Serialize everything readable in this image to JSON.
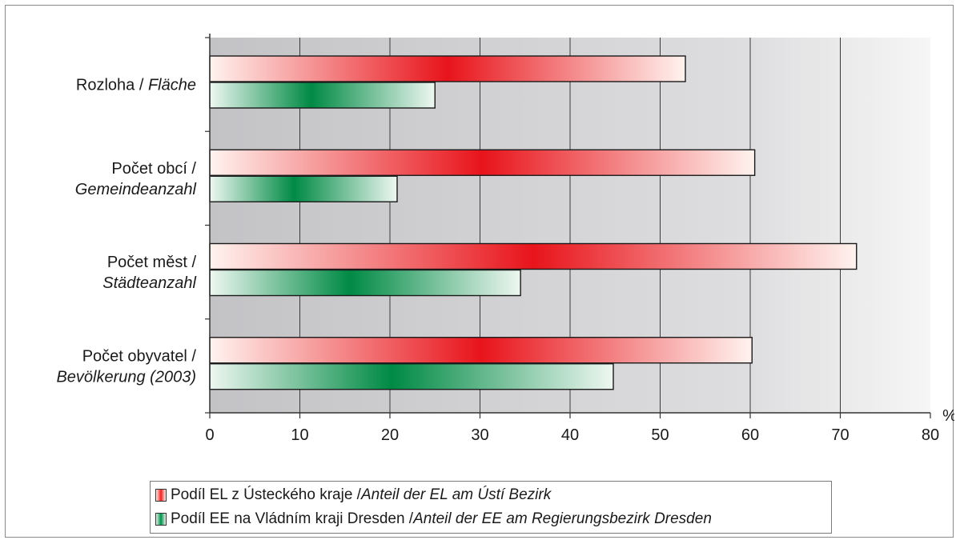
{
  "chart_data": {
    "type": "bar",
    "orientation": "horizontal",
    "categories": [
      {
        "line1": "Rozloha / ",
        "line1_italic": "Fläche",
        "line2": ""
      },
      {
        "line1": "Počet obcí /",
        "line1_italic": "",
        "line2": "Gemeindeanzahl"
      },
      {
        "line1": "Počet měst /",
        "line1_italic": "",
        "line2": "Städteanzahl"
      },
      {
        "line1": "Počet obyvatel /",
        "line1_italic": "",
        "line2": "Bevölkerung (2003)"
      }
    ],
    "series": [
      {
        "name": "Podíl EL z Ústeckého kraje / ",
        "name_italic": "Anteil der EL am Ústí Bezirk",
        "values": [
          52.8,
          60.5,
          71.8,
          60.2
        ],
        "color": "#e8241f"
      },
      {
        "name": "Podíl EE na Vládním kraji Dresden / ",
        "name_italic": "Anteil der EE am Regierungsbezirk Dresden",
        "values": [
          25.0,
          20.8,
          34.5,
          44.8
        ],
        "color": "#00914b"
      }
    ],
    "xlim": [
      0,
      80
    ],
    "xticks": [
      "0",
      "10",
      "20",
      "30",
      "40",
      "50",
      "60",
      "70",
      "80"
    ],
    "xunit": "%",
    "grid": true,
    "legend_position": "bottom",
    "plot_background": "gradient gray"
  }
}
